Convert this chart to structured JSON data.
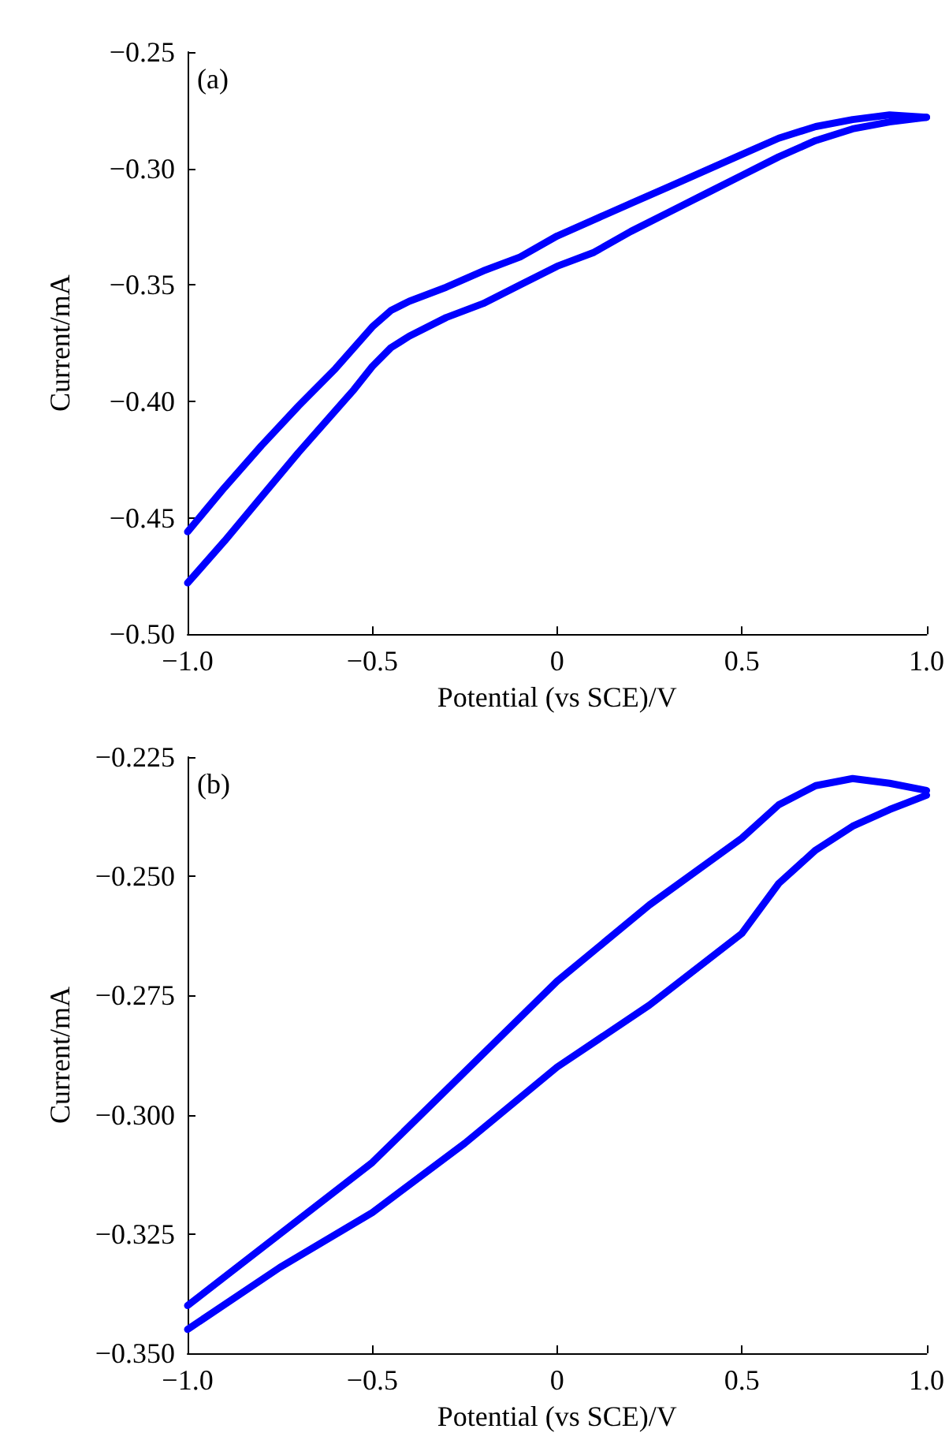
{
  "chart_data": [
    {
      "type": "line",
      "annotations": [
        "(a)"
      ],
      "xlabel": "Potential (vs SCE)/V",
      "ylabel": "Current/mA",
      "marker": "none",
      "line_style": "solid",
      "xlim": [
        -1,
        1
      ],
      "ylim": [
        -0.5,
        -0.25
      ],
      "xticks": [
        {
          "value": -1,
          "label": "−1.0"
        },
        {
          "value": -0.5,
          "label": "−0.5"
        },
        {
          "value": 0,
          "label": "0"
        },
        {
          "value": 0.5,
          "label": "0.5"
        },
        {
          "value": 1,
          "label": "1.0"
        }
      ],
      "yticks": [
        {
          "value": -0.5,
          "label": "−0.50"
        },
        {
          "value": -0.45,
          "label": "−0.45"
        },
        {
          "value": -0.4,
          "label": "−0.40"
        },
        {
          "value": -0.35,
          "label": "−0.35"
        },
        {
          "value": -0.3,
          "label": "−0.30"
        },
        {
          "value": -0.25,
          "label": "−0.25"
        }
      ],
      "series": [
        {
          "color": "#0000ff",
          "x": [
            -1,
            -0.9,
            -0.8,
            -0.7,
            -0.6,
            -0.55,
            -0.5,
            -0.45,
            -0.4,
            -0.3,
            -0.2,
            -0.1,
            0,
            0.1,
            0.2,
            0.3,
            0.4,
            0.5,
            0.6,
            0.7,
            0.8,
            0.9,
            1
          ],
          "values": [
            -0.456,
            -0.437,
            -0.419,
            -0.402,
            -0.386,
            -0.377,
            -0.368,
            -0.361,
            -0.357,
            -0.351,
            -0.344,
            -0.338,
            -0.329,
            -0.322,
            -0.315,
            -0.308,
            -0.301,
            -0.294,
            -0.287,
            -0.282,
            -0.279,
            -0.277,
            -0.278
          ]
        },
        {
          "color": "#0000ff",
          "x": [
            -1,
            -0.9,
            -0.8,
            -0.7,
            -0.6,
            -0.55,
            -0.5,
            -0.45,
            -0.4,
            -0.3,
            -0.2,
            -0.1,
            0,
            0.1,
            0.2,
            0.3,
            0.4,
            0.5,
            0.6,
            0.7,
            0.8,
            0.9,
            1
          ],
          "values": [
            -0.478,
            -0.46,
            -0.441,
            -0.422,
            -0.404,
            -0.395,
            -0.385,
            -0.377,
            -0.372,
            -0.364,
            -0.358,
            -0.35,
            -0.342,
            -0.336,
            -0.327,
            -0.319,
            -0.311,
            -0.303,
            -0.295,
            -0.288,
            -0.283,
            -0.28,
            -0.278
          ]
        }
      ]
    },
    {
      "type": "line",
      "annotations": [
        "(b)"
      ],
      "xlabel": "Potential (vs SCE)/V",
      "ylabel": "Current/mA",
      "marker": "none",
      "line_style": "solid",
      "xlim": [
        -1,
        1
      ],
      "ylim": [
        -0.35,
        -0.225
      ],
      "xticks": [
        {
          "value": -1,
          "label": "−1.0"
        },
        {
          "value": -0.5,
          "label": "−0.5"
        },
        {
          "value": 0,
          "label": "0"
        },
        {
          "value": 0.5,
          "label": "0.5"
        },
        {
          "value": 1,
          "label": "1.0"
        }
      ],
      "yticks": [
        {
          "value": -0.35,
          "label": "−0.350"
        },
        {
          "value": -0.325,
          "label": "−0.325"
        },
        {
          "value": -0.3,
          "label": "−0.300"
        },
        {
          "value": -0.275,
          "label": "−0.275"
        },
        {
          "value": -0.25,
          "label": "−0.250"
        },
        {
          "value": -0.225,
          "label": "−0.225"
        }
      ],
      "series": [
        {
          "color": "#0000ff",
          "x": [
            -1,
            -0.75,
            -0.5,
            -0.25,
            0,
            0.25,
            0.5,
            0.6,
            0.7,
            0.8,
            0.9,
            1
          ],
          "values": [
            -0.34,
            -0.325,
            -0.31,
            -0.291,
            -0.272,
            -0.256,
            -0.242,
            -0.235,
            -0.231,
            -0.2295,
            -0.2305,
            -0.232
          ]
        },
        {
          "color": "#0000ff",
          "x": [
            -1,
            -0.75,
            -0.5,
            -0.25,
            0,
            0.25,
            0.5,
            0.6,
            0.7,
            0.8,
            0.9,
            1
          ],
          "values": [
            -0.345,
            -0.332,
            -0.3205,
            -0.306,
            -0.29,
            -0.277,
            -0.262,
            -0.2515,
            -0.2445,
            -0.2395,
            -0.236,
            -0.233
          ]
        }
      ]
    }
  ]
}
